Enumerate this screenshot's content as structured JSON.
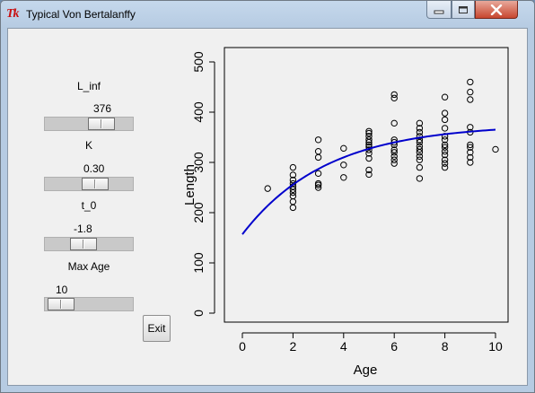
{
  "window": {
    "title": "Typical Von Bertalanffy",
    "icon": "tk-feather-icon",
    "icon_glyph": "Tk"
  },
  "controls": {
    "sliders": [
      {
        "name": "L_inf",
        "label": "L_inf",
        "value": "376",
        "level": 0.55
      },
      {
        "name": "K",
        "label": "K",
        "value": "0.30",
        "level": 0.42
      },
      {
        "name": "t_0",
        "label": "t_0",
        "value": "-1.8",
        "level": 0.33
      },
      {
        "name": "max-age",
        "label": "Max Age",
        "value": "10",
        "level": 0.05
      }
    ],
    "exit_label": "Exit"
  },
  "chart_data": {
    "type": "scatter",
    "title": "",
    "xlabel": "Age",
    "ylabel": "Length",
    "xlim": [
      0,
      10
    ],
    "ylim": [
      0,
      500
    ],
    "xticks": [
      0,
      2,
      4,
      6,
      8,
      10
    ],
    "yticks": [
      0,
      100,
      200,
      300,
      400,
      500
    ],
    "grid": false,
    "point_color": "#000000",
    "curve_color": "#0000cc",
    "points": [
      [
        1,
        248
      ],
      [
        2,
        210
      ],
      [
        2,
        222
      ],
      [
        2,
        233
      ],
      [
        2,
        240
      ],
      [
        2,
        246
      ],
      [
        2,
        252
      ],
      [
        2,
        258
      ],
      [
        2,
        265
      ],
      [
        2,
        275
      ],
      [
        2,
        290
      ],
      [
        3,
        250
      ],
      [
        3,
        255
      ],
      [
        3,
        258
      ],
      [
        3,
        278
      ],
      [
        3,
        310
      ],
      [
        3,
        322
      ],
      [
        3,
        345
      ],
      [
        4,
        270
      ],
      [
        4,
        295
      ],
      [
        4,
        328
      ],
      [
        5,
        276
      ],
      [
        5,
        285
      ],
      [
        5,
        308
      ],
      [
        5,
        318
      ],
      [
        5,
        325
      ],
      [
        5,
        331
      ],
      [
        5,
        335
      ],
      [
        5,
        340
      ],
      [
        5,
        345
      ],
      [
        5,
        352
      ],
      [
        5,
        358
      ],
      [
        5,
        362
      ],
      [
        6,
        298
      ],
      [
        6,
        305
      ],
      [
        6,
        312
      ],
      [
        6,
        320
      ],
      [
        6,
        325
      ],
      [
        6,
        335
      ],
      [
        6,
        340
      ],
      [
        6,
        345
      ],
      [
        6,
        378
      ],
      [
        6,
        428
      ],
      [
        6,
        435
      ],
      [
        7,
        268
      ],
      [
        7,
        290
      ],
      [
        7,
        305
      ],
      [
        7,
        312
      ],
      [
        7,
        320
      ],
      [
        7,
        326
      ],
      [
        7,
        332
      ],
      [
        7,
        340
      ],
      [
        7,
        345
      ],
      [
        7,
        352
      ],
      [
        7,
        360
      ],
      [
        7,
        368
      ],
      [
        7,
        378
      ],
      [
        8,
        290
      ],
      [
        8,
        298
      ],
      [
        8,
        305
      ],
      [
        8,
        315
      ],
      [
        8,
        322
      ],
      [
        8,
        330
      ],
      [
        8,
        335
      ],
      [
        8,
        345
      ],
      [
        8,
        352
      ],
      [
        8,
        368
      ],
      [
        8,
        385
      ],
      [
        8,
        398
      ],
      [
        8,
        430
      ],
      [
        9,
        300
      ],
      [
        9,
        310
      ],
      [
        9,
        320
      ],
      [
        9,
        330
      ],
      [
        9,
        335
      ],
      [
        9,
        360
      ],
      [
        9,
        370
      ],
      [
        9,
        425
      ],
      [
        9,
        440
      ],
      [
        9,
        460
      ],
      [
        10,
        326
      ]
    ],
    "curve": {
      "model": "von Bertalanffy",
      "L_inf": 376,
      "K": 0.3,
      "t_0": -1.8,
      "x_from": 0,
      "x_to": 10
    }
  }
}
